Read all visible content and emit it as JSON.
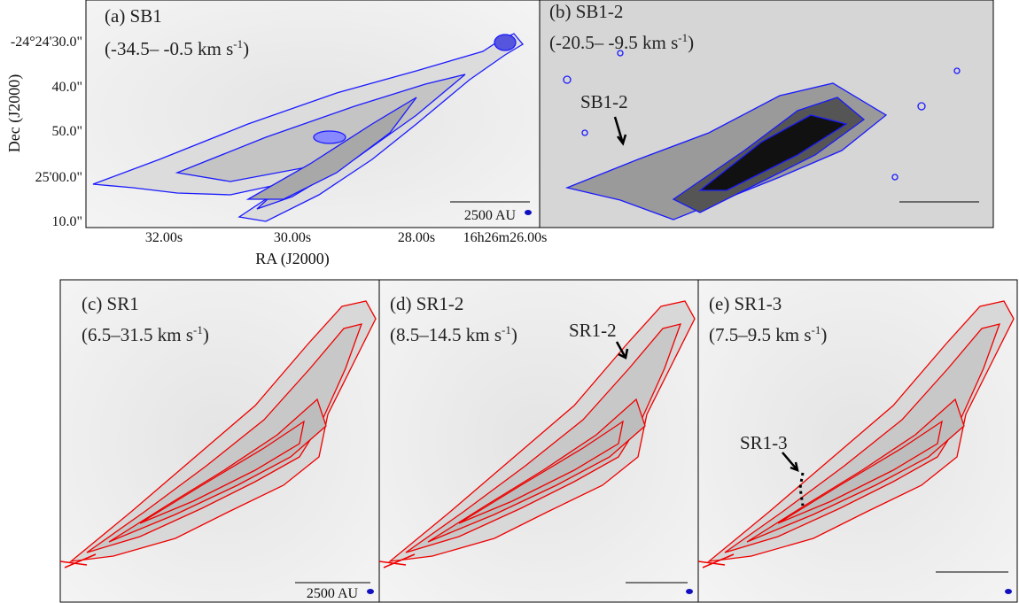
{
  "axes": {
    "y_label": "Dec (J2000)",
    "x_label": "RA (J2000)",
    "y_ticks": [
      "-24°24'30.0\"",
      "40.0\"",
      "50.0\"",
      "25'00.0\"",
      "10.0\""
    ],
    "x_ticks": [
      "32.00s",
      "30.00s",
      "28.00s",
      "16h26m26.00s"
    ]
  },
  "panels": [
    {
      "label": "(a) SB1",
      "range": {
        "text": "(-34.5– -0.5 km s",
        "sup": "-1",
        "close": ")"
      },
      "scale_bar": "2500 AU"
    },
    {
      "label": "(b) SB1-2",
      "range": {
        "text": "(-20.5– -9.5 km s",
        "sup": "-1",
        "close": ")"
      },
      "annotation": "SB1-2"
    },
    {
      "label": "(c) SR1",
      "range": {
        "text": "(6.5–31.5 km s",
        "sup": "-1",
        "close": ")"
      },
      "scale_bar": "2500 AU"
    },
    {
      "label": "(d) SR1-2",
      "range": {
        "text": "(8.5–14.5 km s",
        "sup": "-1",
        "close": ")"
      },
      "annotation": "SR1-2"
    },
    {
      "label": "(e) SR1-3",
      "range": {
        "text": "(7.5–9.5 km s",
        "sup": "-1",
        "close": ")"
      },
      "annotation": "SR1-3"
    }
  ]
}
